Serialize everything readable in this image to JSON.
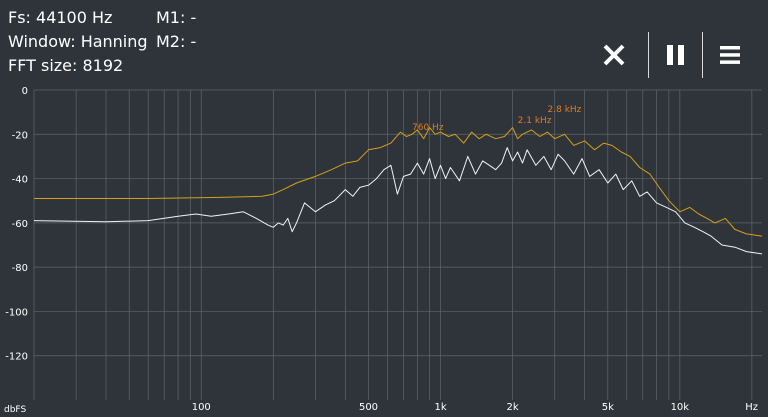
{
  "info": {
    "fs": "Fs: 44100 Hz",
    "window": "Window: Hanning",
    "fft": "FFT size: 8192"
  },
  "markers": {
    "m1": "M1: -",
    "m2": "M2: -"
  },
  "toolbar": {
    "close_icon": "close-icon",
    "pause_icon": "pause-icon",
    "menu_icon": "menu-icon"
  },
  "chart_data": {
    "type": "line",
    "xscale": "log",
    "xlim": [
      20,
      22050
    ],
    "ylim": [
      -140,
      0
    ],
    "xlabel": "Hz",
    "ylabel": "dbFS",
    "y_ticks": [
      0,
      -20,
      -40,
      -60,
      -80,
      -100,
      -120
    ],
    "x_ticks": [
      {
        "value": 100,
        "label": "100"
      },
      {
        "value": 500,
        "label": "500"
      },
      {
        "value": 1000,
        "label": "1k"
      },
      {
        "value": 2000,
        "label": "2k"
      },
      {
        "value": 5000,
        "label": "5k"
      },
      {
        "value": 10000,
        "label": "10k"
      }
    ],
    "grid": true,
    "colors": {
      "background": "#2f343b",
      "grid": "#6b7078",
      "peak": "#d4a017",
      "live": "#f2f2f2",
      "peak_label": "#e07b1a"
    },
    "series": [
      {
        "role": "peak-hold",
        "color": "#d4a017",
        "x": [
          20,
          60,
          120,
          180,
          200,
          220,
          250,
          300,
          350,
          400,
          450,
          500,
          560,
          620,
          680,
          720,
          760,
          800,
          850,
          900,
          950,
          1000,
          1080,
          1150,
          1250,
          1350,
          1450,
          1550,
          1700,
          1850,
          2000,
          2100,
          2200,
          2400,
          2600,
          2800,
          3000,
          3300,
          3600,
          4000,
          4400,
          4800,
          5200,
          5700,
          6200,
          6800,
          7500,
          8200,
          9000,
          10000,
          11000,
          12000,
          13000,
          14000,
          15500,
          17000,
          19000,
          22050
        ],
        "values": [
          -49,
          -49,
          -48.5,
          -48,
          -47,
          -45,
          -42,
          -39,
          -36,
          -33,
          -32,
          -27,
          -26,
          -24,
          -19,
          -21,
          -20,
          -18,
          -22,
          -17,
          -20,
          -19,
          -21,
          -20,
          -24,
          -19,
          -22,
          -20,
          -22,
          -21,
          -17,
          -22,
          -20,
          -18,
          -21,
          -19,
          -22,
          -20,
          -25,
          -23,
          -27,
          -24,
          -25,
          -28,
          -30,
          -35,
          -38,
          -44,
          -50,
          -55,
          -53,
          -56,
          -58,
          -60,
          -58,
          -63,
          -65,
          -66
        ]
      },
      {
        "role": "live",
        "color": "#f2f2f2",
        "x": [
          20,
          40,
          60,
          80,
          95,
          110,
          130,
          150,
          170,
          190,
          200,
          210,
          220,
          230,
          240,
          250,
          270,
          300,
          330,
          360,
          400,
          430,
          460,
          500,
          540,
          580,
          620,
          660,
          700,
          750,
          800,
          850,
          900,
          950,
          1000,
          1050,
          1100,
          1200,
          1300,
          1400,
          1500,
          1600,
          1700,
          1800,
          1900,
          2000,
          2100,
          2200,
          2300,
          2500,
          2700,
          2900,
          3100,
          3300,
          3600,
          3900,
          4200,
          4600,
          5000,
          5400,
          5800,
          6300,
          6800,
          7300,
          8000,
          8800,
          9600,
          10500,
          11500,
          12500,
          13500,
          15000,
          17000,
          19000,
          22050
        ],
        "values": [
          -59,
          -59.5,
          -59,
          -57,
          -56,
          -57,
          -56,
          -55,
          -58,
          -61,
          -62,
          -60,
          -61,
          -58,
          -64,
          -60,
          -51,
          -55,
          -52,
          -50,
          -45,
          -48,
          -44,
          -43,
          -40,
          -36,
          -34,
          -47,
          -39,
          -38,
          -33,
          -38,
          -31,
          -40,
          -34,
          -40,
          -35,
          -41,
          -30,
          -38,
          -32,
          -34,
          -36,
          -33,
          -26,
          -32,
          -28,
          -33,
          -27,
          -34,
          -30,
          -36,
          -29,
          -32,
          -38,
          -31,
          -39,
          -36,
          -42,
          -38,
          -45,
          -41,
          -48,
          -46,
          -51,
          -53,
          -55,
          -60,
          -62,
          -64,
          -66,
          -70,
          -71,
          -73,
          -74
        ]
      }
    ],
    "annotations": [
      {
        "text": "2.8  kHz",
        "x": 2800,
        "y": -10
      },
      {
        "text": "2.1  kHz",
        "x": 2100,
        "y": -15
      },
      {
        "text": "760  Hz",
        "x": 760,
        "y": -18
      }
    ]
  }
}
